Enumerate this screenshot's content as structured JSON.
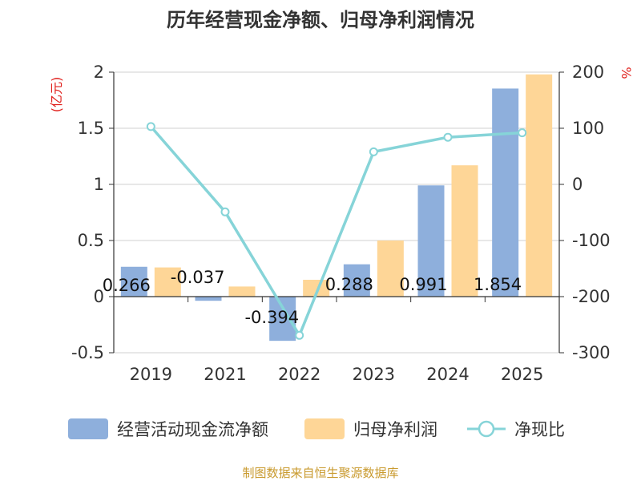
{
  "chart_data": {
    "type": "bar",
    "title": "历年经营现金净额、归母净利润情况",
    "categories": [
      "2019",
      "2021",
      "2022",
      "2023",
      "2024",
      "2025"
    ],
    "y_left_unit": "(亿元)",
    "y_right_unit": "%",
    "y_left_range": [
      -0.5,
      2
    ],
    "y_left_ticks": [
      "-0.5",
      "0",
      "0.5",
      "1",
      "1.5",
      "2"
    ],
    "y_right_range": [
      -300,
      200
    ],
    "y_right_ticks": [
      "-300",
      "-200",
      "-100",
      "0",
      "100",
      "200"
    ],
    "grid": true,
    "legend_position": "bottom",
    "series": [
      {
        "name": "经营活动现金流净额",
        "type": "bar",
        "axis": "left",
        "color": "#8eafdc",
        "values": [
          0.266,
          -0.037,
          -0.394,
          0.288,
          0.991,
          1.854
        ],
        "labels": [
          "0.266",
          "-0.037",
          "-0.394",
          "0.288",
          "0.991",
          "1.854"
        ]
      },
      {
        "name": "归母净利润",
        "type": "bar",
        "axis": "left",
        "color": "#fed697",
        "values": [
          0.26,
          0.09,
          0.15,
          0.5,
          1.17,
          1.98
        ]
      },
      {
        "name": "净现比",
        "type": "line",
        "axis": "right",
        "color": "#86d4d8",
        "values": [
          103,
          -49,
          -269,
          58,
          84,
          92
        ]
      }
    ]
  },
  "footer": {
    "source": "制图数据来自恒生聚源数据库"
  }
}
